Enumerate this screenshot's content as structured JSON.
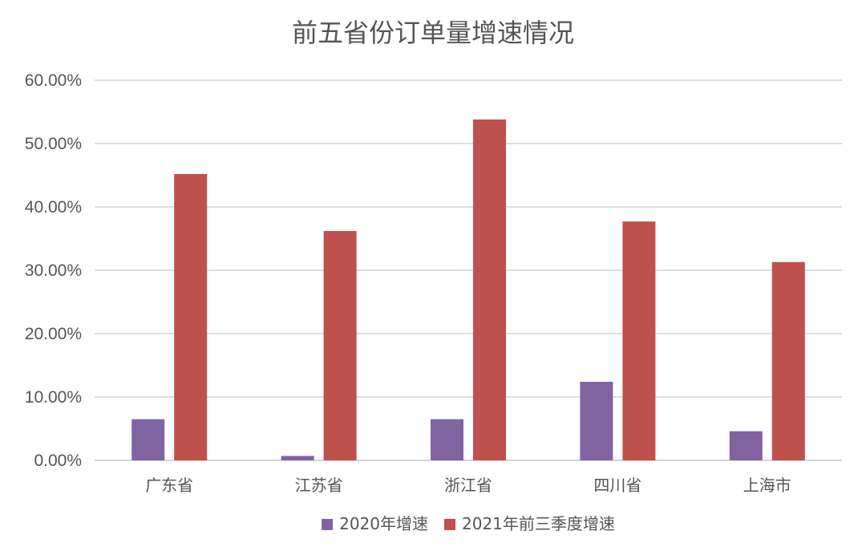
{
  "chart_data": {
    "type": "bar",
    "title": "前五省份订单量增速情况",
    "categories": [
      "广东省",
      "江苏省",
      "浙江省",
      "四川省",
      "上海市"
    ],
    "series": [
      {
        "name": "2020年增速",
        "color": "#8064a2",
        "values": [
          0.065,
          0.007,
          0.065,
          0.124,
          0.046
        ]
      },
      {
        "name": "2021年前三季度增速",
        "color": "#c0504d",
        "values": [
          0.452,
          0.362,
          0.538,
          0.377,
          0.313
        ]
      }
    ],
    "ylim": [
      0,
      0.6
    ],
    "yticks": [
      0,
      0.1,
      0.2,
      0.3,
      0.4,
      0.5,
      0.6
    ],
    "ytick_labels": [
      "0.00%",
      "10.00%",
      "20.00%",
      "30.00%",
      "40.00%",
      "50.00%",
      "60.00%"
    ],
    "grid": true,
    "legend_position": "bottom"
  }
}
